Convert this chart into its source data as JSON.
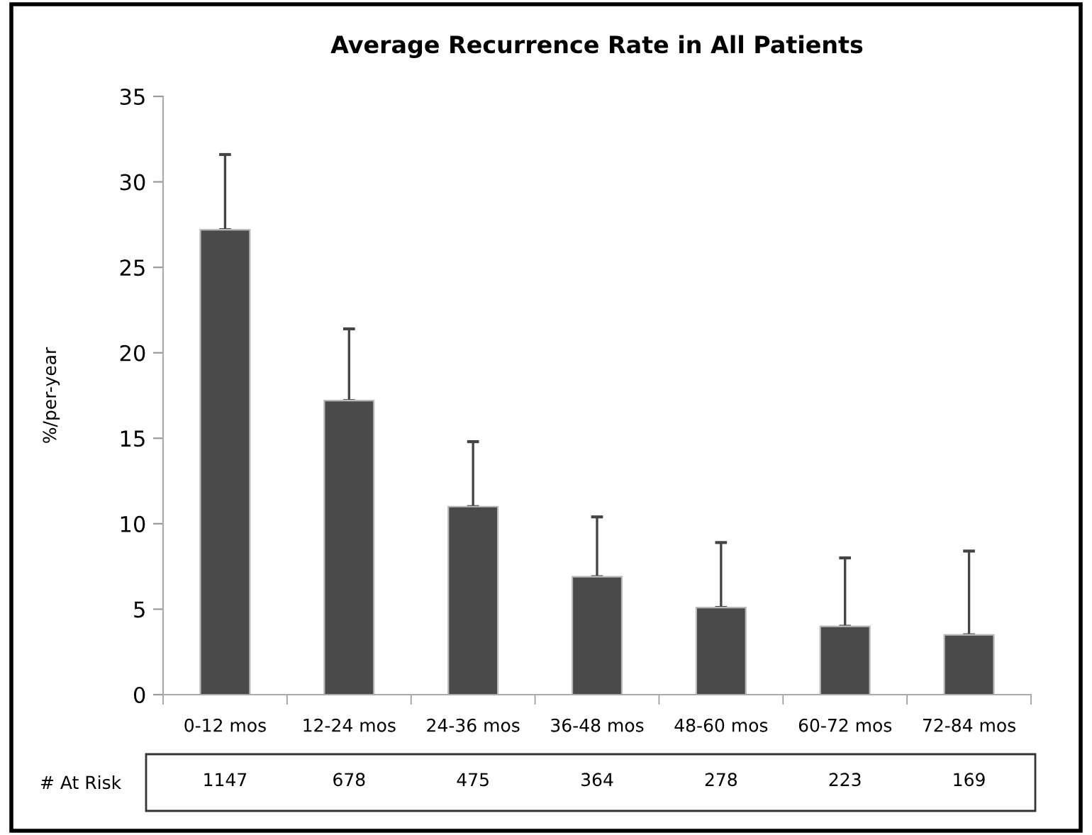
{
  "chart_data": {
    "type": "bar",
    "title": "Average Recurrence Rate in All Patients",
    "ylabel": "%/per-year",
    "categories": [
      "0-12 mos",
      "12-24 mos",
      "24-36 mos",
      "36-48 mos",
      "48-60 mos",
      "60-72 mos",
      "72-84 mos"
    ],
    "values": [
      27.2,
      17.2,
      11.0,
      6.9,
      5.1,
      4.0,
      3.5
    ],
    "errors": [
      [
        27.2,
        31.6
      ],
      [
        17.2,
        21.4
      ],
      [
        11.0,
        14.8
      ],
      [
        6.9,
        10.4
      ],
      [
        5.1,
        8.9
      ],
      [
        4.0,
        8.0
      ],
      [
        3.5,
        8.4
      ]
    ],
    "color": "#4a4a4a",
    "ylim": [
      0,
      35
    ],
    "yticks": [
      0,
      5,
      10,
      15,
      20,
      25,
      30,
      35
    ],
    "grid": false,
    "legend": false,
    "annotations": [
      "# At Risk",
      "1147",
      "678",
      "475",
      "364",
      "278",
      "223",
      "169"
    ]
  }
}
